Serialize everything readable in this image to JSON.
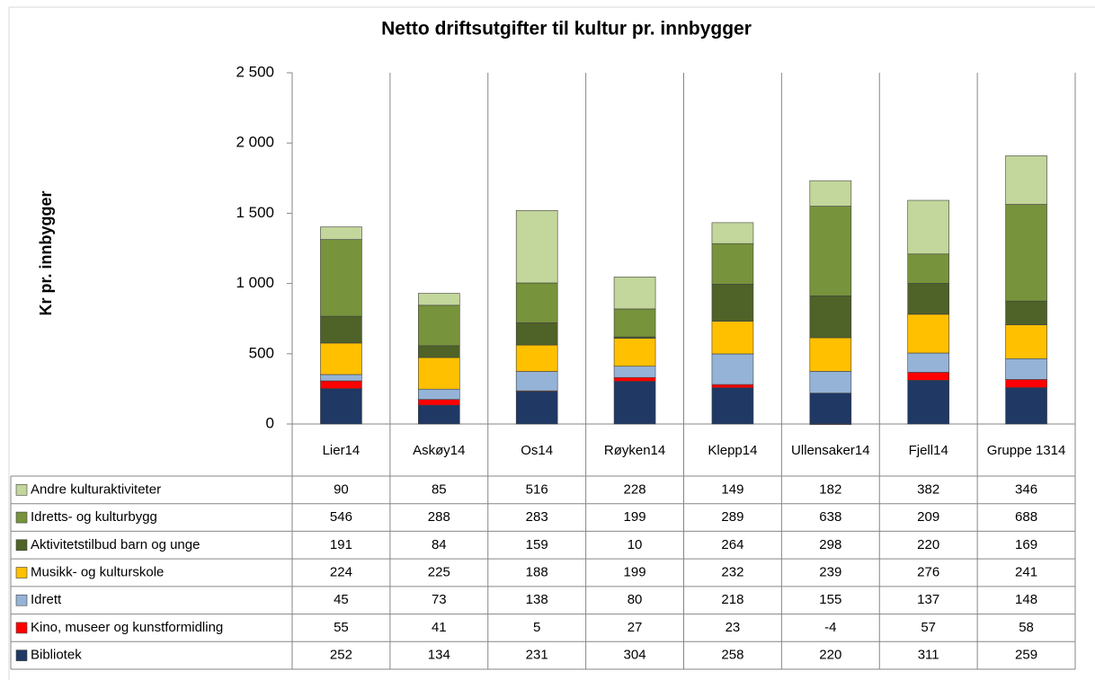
{
  "chart_data": {
    "type": "stacked-bar",
    "title": "Netto driftsutgifter til kultur pr. innbygger",
    "y_label": "Kr pr. innbygger",
    "categories": [
      "Lier14",
      "Askøy14",
      "Os14",
      "Røyken14",
      "Klepp14",
      "Ullensaker14",
      "Fjell14",
      "Gruppe 1314"
    ],
    "series": [
      {
        "name": "Andre kulturaktiviteter",
        "color": "#c3d69b",
        "values": [
          90,
          85,
          516,
          228,
          149,
          182,
          382,
          346
        ]
      },
      {
        "name": "Idretts- og kulturbygg",
        "color": "#77933c",
        "values": [
          546,
          288,
          283,
          199,
          289,
          638,
          209,
          688
        ]
      },
      {
        "name": "Aktivitetstilbud barn og unge",
        "color": "#4f6228",
        "values": [
          191,
          84,
          159,
          10,
          264,
          298,
          220,
          169
        ]
      },
      {
        "name": "Musikk- og kulturskole",
        "color": "#ffc000",
        "values": [
          224,
          225,
          188,
          199,
          232,
          239,
          276,
          241
        ]
      },
      {
        "name": "Idrett",
        "color": "#95b3d7",
        "values": [
          45,
          73,
          138,
          80,
          218,
          155,
          137,
          148
        ]
      },
      {
        "name": "Kino, museer og kunstformidling",
        "color": "#ff0000",
        "values": [
          55,
          41,
          5,
          27,
          23,
          -4,
          57,
          58
        ]
      },
      {
        "name": "Bibliotek",
        "color": "#1f3864",
        "values": [
          252,
          134,
          231,
          304,
          258,
          220,
          311,
          259
        ]
      }
    ],
    "ylim": [
      0,
      2500
    ],
    "yticks": [
      0,
      500,
      {
        "value": 1000,
        "label": "1 000"
      },
      {
        "value": 1500,
        "label": "1 500"
      },
      {
        "value": 2000,
        "label": "2 000"
      },
      {
        "value": 2500,
        "label": "2 500"
      }
    ],
    "grid": false
  }
}
